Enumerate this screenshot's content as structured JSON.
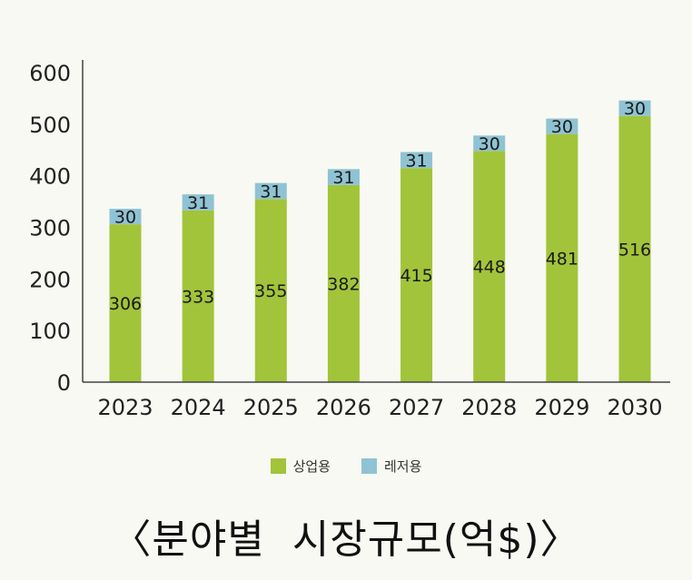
{
  "chart_data": {
    "type": "bar",
    "stacked": true,
    "title": "〈분야별  시장규모(억$)〉",
    "categories": [
      "2023",
      "2024",
      "2025",
      "2026",
      "2027",
      "2028",
      "2029",
      "2030"
    ],
    "series": [
      {
        "name": "상업용",
        "color": "#a2c43a",
        "values": [
          306,
          333,
          355,
          382,
          415,
          448,
          481,
          516
        ]
      },
      {
        "name": "레저용",
        "color": "#8fc3d3",
        "values": [
          30,
          31,
          31,
          31,
          31,
          30,
          30,
          30
        ]
      }
    ],
    "ylim": [
      0,
      600
    ],
    "yticks": [
      0,
      100,
      200,
      300,
      400,
      500,
      600
    ],
    "grid": false,
    "legend_position": "bottom"
  }
}
